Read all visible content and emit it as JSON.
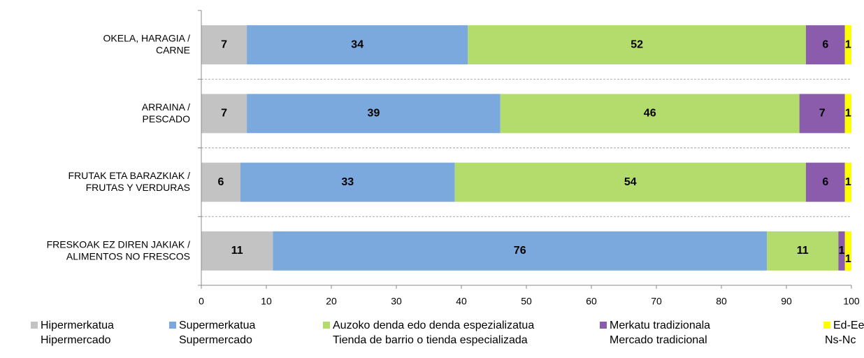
{
  "chart_data": {
    "type": "bar",
    "orientation": "horizontal",
    "stacked": true,
    "categories": [
      [
        "OKELA, HARAGIA /",
        "CARNE"
      ],
      [
        "ARRAINA /",
        "PESCADO"
      ],
      [
        "FRUTAK ETA BARAZKIAK /",
        "FRUTAS Y VERDURAS"
      ],
      [
        "FRESKOAK EZ DIREN JAKIAK /",
        "ALIMENTOS NO FRESCOS"
      ]
    ],
    "series": [
      {
        "name": [
          "Hipermerkatua",
          "Hipermercado"
        ],
        "color": "#c3c3c3",
        "values": [
          7,
          7,
          6,
          11
        ]
      },
      {
        "name": [
          "Supermerkatua",
          "Supermercado"
        ],
        "color": "#7ba9de",
        "values": [
          34,
          39,
          33,
          76
        ]
      },
      {
        "name": [
          "Auzoko denda edo denda espezializatua",
          "Tienda de barrio o tienda especializada"
        ],
        "color": "#b4dc6c",
        "values": [
          52,
          46,
          54,
          11
        ]
      },
      {
        "name": [
          "Merkatu tradizionala",
          "Mercado tradicional"
        ],
        "color": "#8a5cab",
        "values": [
          6,
          7,
          6,
          1
        ]
      },
      {
        "name": [
          "Ed-Ee",
          "Ns-Nc"
        ],
        "color": "#ffff00",
        "values": [
          1,
          1,
          1,
          1
        ]
      }
    ],
    "xlim": [
      0,
      100
    ],
    "xticks": [
      0,
      10,
      20,
      30,
      40,
      50,
      60,
      70,
      80,
      90,
      100
    ],
    "legend": "bottom"
  }
}
